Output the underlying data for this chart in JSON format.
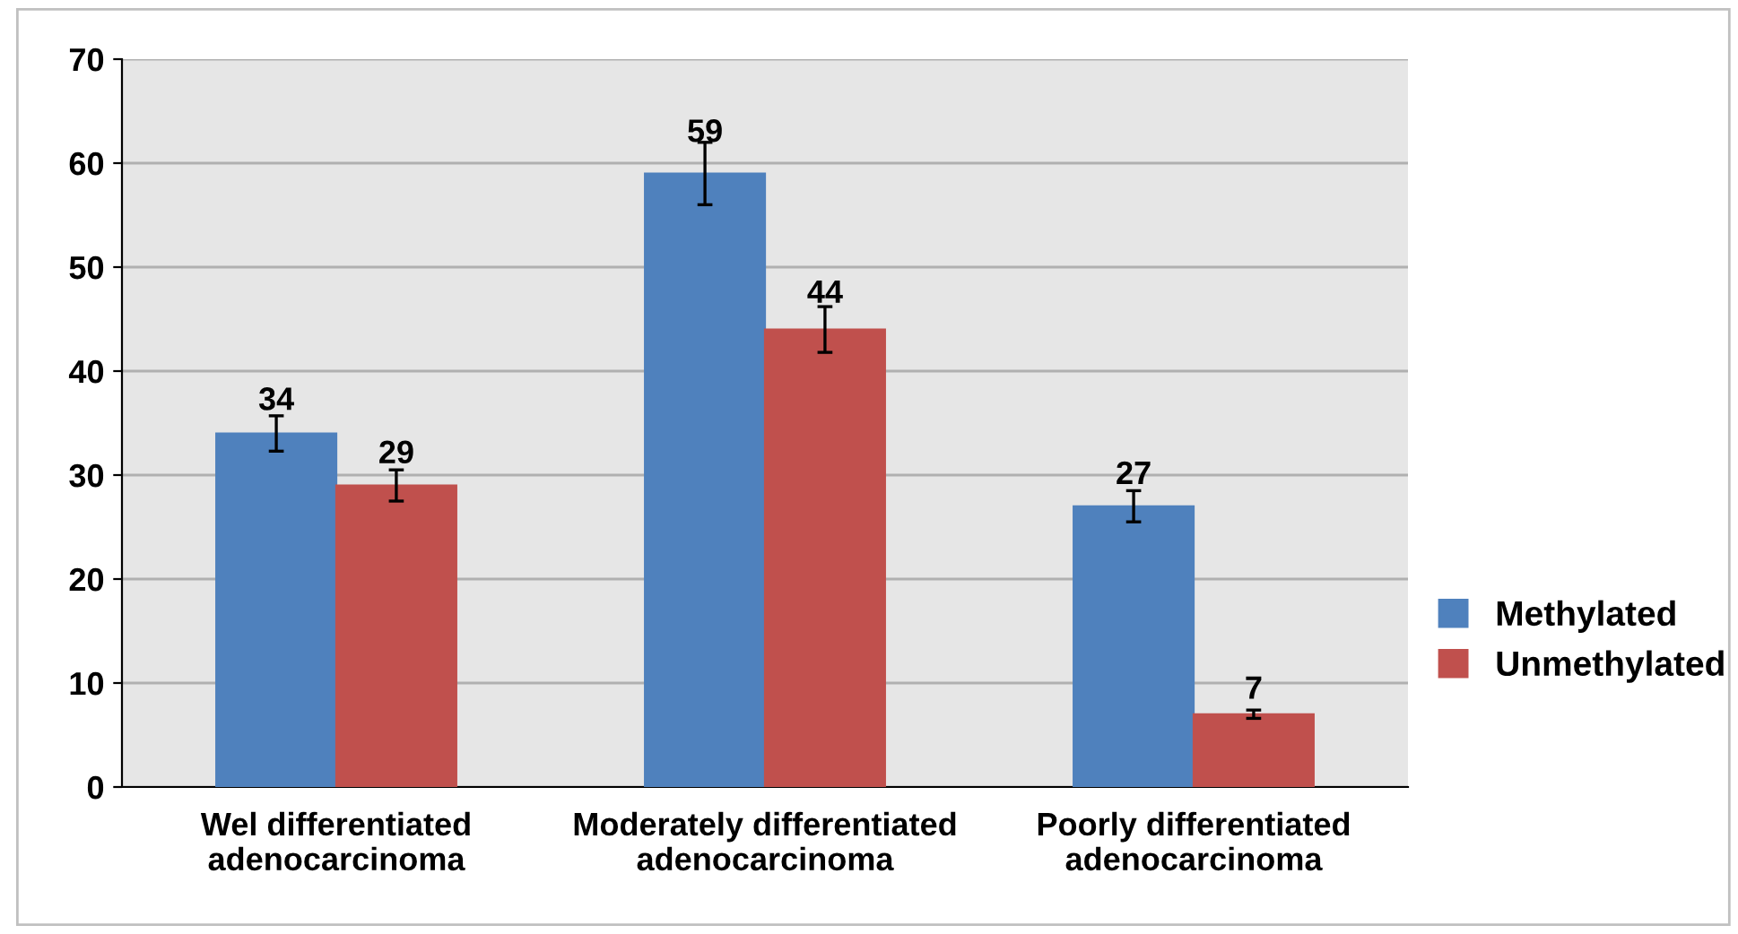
{
  "chart_data": {
    "type": "bar",
    "categories": [
      "Wel differentiated\nadenocarcinoma",
      "Moderately differentiated\nadenocarcinoma",
      "Poorly differentiated\nadenocarcinoma"
    ],
    "series": [
      {
        "name": "Methylated",
        "color": "#4f81bd",
        "values": [
          34,
          59,
          27
        ],
        "errors": [
          1.7,
          3,
          1.5
        ]
      },
      {
        "name": "Unmethylated",
        "color": "#c0504d",
        "values": [
          29,
          44,
          7
        ],
        "errors": [
          1.5,
          2.2,
          0.4
        ]
      }
    ],
    "ylim": [
      0,
      70
    ],
    "yticks": [
      0,
      10,
      20,
      30,
      40,
      50,
      60,
      70
    ],
    "grid": "y",
    "legend": "right",
    "data_labels": true
  }
}
